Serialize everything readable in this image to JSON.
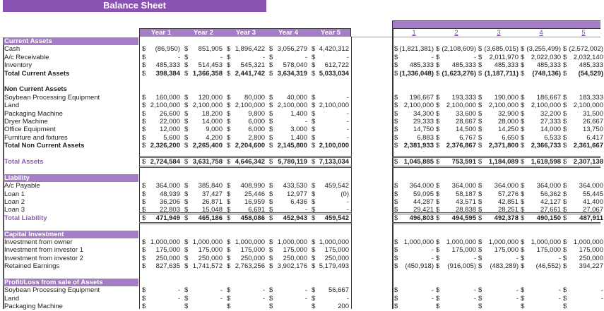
{
  "title": "Balance Sheet",
  "years": [
    "Year 1",
    "Year 2",
    "Year 3",
    "Year 4",
    "Year 5"
  ],
  "months": [
    "1",
    "2",
    "3",
    "4",
    "5"
  ],
  "rows": [
    {
      "label": "Current Assets",
      "type": "sec"
    },
    {
      "label": "Cash",
      "left": [
        "(86,950)",
        "851,905",
        "1,896,422",
        "3,056,279",
        "4,420,312"
      ],
      "right": [
        "(1,821,381)",
        "(2,108,609)",
        "(3,685,015)",
        "(3,255,499)",
        "(2,572,002)"
      ]
    },
    {
      "label": "A/c Receivable",
      "left": [
        "-",
        "-",
        "-",
        "-",
        "-"
      ],
      "right": [
        "-",
        "-",
        "2,011,970",
        "2,022,030",
        "2,032,140"
      ]
    },
    {
      "label": "Inventory",
      "left": [
        "485,333",
        "514,453",
        "545,321",
        "578,040",
        "612,722"
      ],
      "right": [
        "485,333",
        "485,333",
        "485,333",
        "485,333",
        "485,333"
      ]
    },
    {
      "label": "Total Current Assets",
      "type": "tot",
      "left": [
        "398,384",
        "1,366,358",
        "2,441,742",
        "3,634,319",
        "5,033,034"
      ],
      "right": [
        "(1,336,048)",
        "(1,623,276)",
        "(1,187,711)",
        "(748,136)",
        "(54,529)"
      ]
    },
    {
      "label": "",
      "type": "blank"
    },
    {
      "label": "Non Current Assets",
      "type": "tot"
    },
    {
      "label": "Soybean Processing Equipment",
      "left": [
        "160,000",
        "120,000",
        "80,000",
        "40,000",
        "-"
      ],
      "right": [
        "196,667",
        "193,333",
        "190,000",
        "186,667",
        "183,333"
      ]
    },
    {
      "label": "Land",
      "left": [
        "2,100,000",
        "2,100,000",
        "2,100,000",
        "2,100,000",
        "2,100,000"
      ],
      "right": [
        "2,100,000",
        "2,100,000",
        "2,100,000",
        "2,100,000",
        "2,100,000"
      ]
    },
    {
      "label": "Packaging Machine",
      "left": [
        "26,600",
        "18,200",
        "9,800",
        "1,400",
        "-"
      ],
      "right": [
        "34,300",
        "33,600",
        "32,900",
        "32,200",
        "31,500"
      ]
    },
    {
      "label": "Dryer Machine",
      "left": [
        "22,000",
        "14,000",
        "6,000",
        "-",
        "-"
      ],
      "right": [
        "29,333",
        "28,667",
        "28,000",
        "27,333",
        "26,667"
      ]
    },
    {
      "label": "Office Equipment",
      "left": [
        "12,000",
        "9,000",
        "6,000",
        "3,000",
        "-"
      ],
      "right": [
        "14,750",
        "14,500",
        "14,250",
        "14,000",
        "13,750"
      ]
    },
    {
      "label": "Furniture and fixtures",
      "left": [
        "5,600",
        "4,200",
        "2,800",
        "1,400",
        "-"
      ],
      "right": [
        "6,883",
        "6,767",
        "6,650",
        "6,533",
        "6,417"
      ]
    },
    {
      "label": "Total Non Current Assets",
      "type": "tot",
      "left": [
        "2,326,200",
        "2,265,400",
        "2,204,600",
        "2,145,800",
        "2,100,000"
      ],
      "right": [
        "2,381,933",
        "2,376,867",
        "2,371,800",
        "2,366,733",
        "2,361,667"
      ]
    },
    {
      "label": "",
      "type": "blank"
    },
    {
      "label": "Total Assets",
      "type": "ptot",
      "left": [
        "2,724,584",
        "3,631,758",
        "4,646,342",
        "5,780,119",
        "7,133,034"
      ],
      "right": [
        "1,045,885",
        "753,591",
        "1,184,089",
        "1,618,598",
        "2,307,138"
      ]
    },
    {
      "label": "",
      "type": "blank"
    },
    {
      "label": "Liability",
      "type": "sec"
    },
    {
      "label": "A/c Payable",
      "left": [
        "364,000",
        "385,840",
        "408,990",
        "433,530",
        "459,542"
      ],
      "right": [
        "364,000",
        "364,000",
        "364,000",
        "364,000",
        "364,000"
      ]
    },
    {
      "label": "Loan 1",
      "left": [
        "48,939",
        "37,427",
        "25,446",
        "12,977",
        "(0)"
      ],
      "right": [
        "59,095",
        "58,187",
        "57,276",
        "56,362",
        "55,445"
      ]
    },
    {
      "label": "Loan 2",
      "left": [
        "36,206",
        "26,871",
        "16,959",
        "6,436",
        "-"
      ],
      "right": [
        "44,287",
        "43,571",
        "42,851",
        "42,127",
        "41,400"
      ]
    },
    {
      "label": "Loan 3",
      "left": [
        "22,803",
        "15,048",
        "6,691",
        "-",
        "-"
      ],
      "right": [
        "29,421",
        "28,838",
        "28,251",
        "27,661",
        "27,067"
      ]
    },
    {
      "label": "Total Liability",
      "type": "ptot",
      "left": [
        "471,949",
        "465,186",
        "458,086",
        "452,943",
        "459,542"
      ],
      "right": [
        "496,803",
        "494,595",
        "492,378",
        "490,150",
        "487,911"
      ]
    },
    {
      "label": "",
      "type": "blank"
    },
    {
      "label": "Capital Investment",
      "type": "sec"
    },
    {
      "label": "Investment from owner",
      "left": [
        "1,000,000",
        "1,000,000",
        "1,000,000",
        "1,000,000",
        "1,000,000"
      ],
      "right": [
        "1,000,000",
        "1,000,000",
        "1,000,000",
        "1,000,000",
        "1,000,000"
      ]
    },
    {
      "label": "Investment from investor 1",
      "left": [
        "175,000",
        "175,000",
        "175,000",
        "175,000",
        "175,000"
      ],
      "right": [
        "-",
        "175,000",
        "175,000",
        "175,000",
        "175,000"
      ]
    },
    {
      "label": "Investment from investor 2",
      "left": [
        "250,000",
        "250,000",
        "250,000",
        "250,000",
        "250,000"
      ],
      "right": [
        "-",
        "-",
        "-",
        "-",
        "250,000"
      ]
    },
    {
      "label": "Retained Earnings",
      "left": [
        "827,635",
        "1,741,572",
        "2,763,256",
        "3,902,176",
        "5,179,493"
      ],
      "right": [
        "(450,918)",
        "(916,005)",
        "(483,289)",
        "(46,552)",
        "394,227"
      ]
    },
    {
      "label": "",
      "type": "blank"
    },
    {
      "label": "Profit/Loss from sale of Assets",
      "type": "sec"
    },
    {
      "label": "Soybean Processing Equipment",
      "left": [
        "-",
        "-",
        "-",
        "-",
        "56,667"
      ],
      "right": [
        "-",
        "-",
        "-",
        "-",
        "-"
      ]
    },
    {
      "label": "Land",
      "left": [
        "-",
        "-",
        "-",
        "-",
        "-"
      ],
      "right": [
        "-",
        "-",
        "-",
        "-",
        "-"
      ]
    },
    {
      "label": "Packaging Machine",
      "left": [
        "",
        "",
        "",
        "",
        "200"
      ],
      "right": [
        "",
        "",
        "",
        "",
        ""
      ]
    }
  ],
  "currency": "$",
  "colors": {
    "title_bg": "#8a52b3",
    "header_bg": "#a57cc6",
    "accent_text": "#8e5bb5"
  }
}
